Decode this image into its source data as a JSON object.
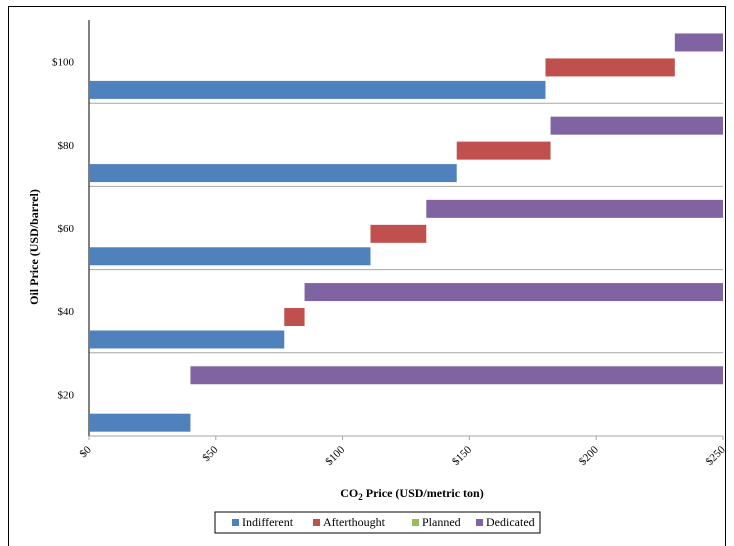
{
  "chart_data": {
    "type": "bar",
    "orientation": "horizontal-stacked-ranges",
    "ylabel": "Oil Price (USD/barrel)",
    "xlabel_main": "CO",
    "xlabel_sub": "2",
    "xlabel_rest": " Price (USD/metric ton)",
    "xlim": [
      0,
      250
    ],
    "x_ticks": [
      "$0",
      "$50",
      "$100",
      "$150",
      "$200",
      "$250"
    ],
    "x_tick_values": [
      0,
      50,
      100,
      150,
      200,
      250
    ],
    "categories": [
      "$100",
      "$80",
      "$60",
      "$40",
      "$20"
    ],
    "grid": "horizontal separators between categories",
    "legend_position": "bottom",
    "series": [
      {
        "name": "Indifferent",
        "color": "#4f81bd",
        "ranges": [
          [
            0,
            180
          ],
          [
            0,
            145
          ],
          [
            0,
            111
          ],
          [
            0,
            77
          ],
          [
            0,
            40
          ]
        ]
      },
      {
        "name": "Afterthought",
        "color": "#c0504d",
        "ranges": [
          [
            180,
            231
          ],
          [
            145,
            182
          ],
          [
            111,
            133
          ],
          [
            77,
            85
          ],
          null
        ]
      },
      {
        "name": "Planned",
        "color": "#9bbb59",
        "ranges": [
          null,
          null,
          null,
          null,
          null
        ]
      },
      {
        "name": "Dedicated",
        "color": "#8064a2",
        "ranges": [
          [
            231,
            250
          ],
          [
            182,
            250
          ],
          [
            133,
            250
          ],
          [
            85,
            250
          ],
          [
            40,
            250
          ]
        ]
      }
    ]
  }
}
